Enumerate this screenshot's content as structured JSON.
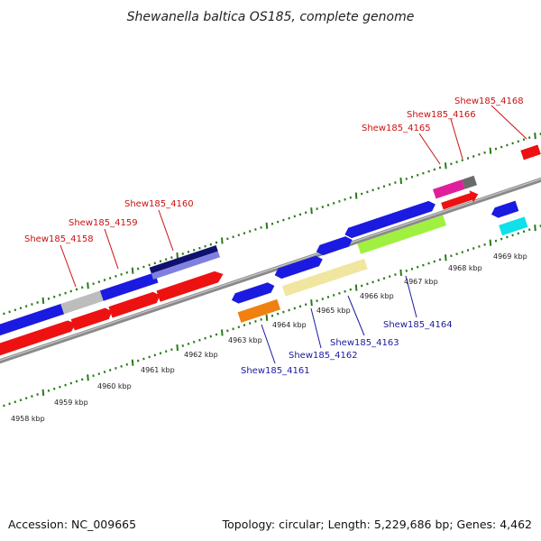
{
  "title": "Shewanella baltica OS185, complete genome",
  "footer": {
    "accession": "Accession: NC_009665",
    "topology": "Topology: circular; Length: 5,229,686 bp; Genes: 4,462"
  },
  "colors": {
    "background": "#ffffff",
    "backbone": "#909090",
    "tick": "#2a7a1a",
    "top_label": "#cc1111",
    "bottom_label": "#1a1aa0"
  },
  "top_labels": [
    {
      "text": "Shew185_4158"
    },
    {
      "text": "Shew185_4159"
    },
    {
      "text": "Shew185_4160"
    },
    {
      "text": "Shew185_4165"
    },
    {
      "text": "Shew185_4166"
    },
    {
      "text": "Shew185_4168"
    }
  ],
  "bottom_labels": [
    {
      "text": "Shew185_4161"
    },
    {
      "text": "Shew185_4162"
    },
    {
      "text": "Shew185_4163"
    },
    {
      "text": "Shew185_4164"
    }
  ],
  "kbp_labels": [
    {
      "text": "4958 kbp"
    },
    {
      "text": "4959 kbp"
    },
    {
      "text": "4960 kbp"
    },
    {
      "text": "4961 kbp"
    },
    {
      "text": "4962 kbp"
    },
    {
      "text": "4963 kbp"
    },
    {
      "text": "4964 kbp"
    },
    {
      "text": "4965 kbp"
    },
    {
      "text": "4966 kbp"
    },
    {
      "text": "4967 kbp"
    },
    {
      "text": "4968 kbp"
    },
    {
      "text": "4969 kbp"
    }
  ]
}
